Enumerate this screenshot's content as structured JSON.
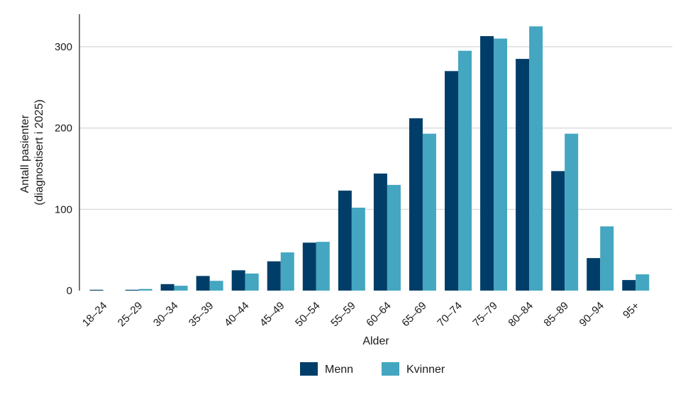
{
  "chart_data": {
    "type": "bar",
    "xlabel": "Alder",
    "ylabel_lines": [
      "Antall pasienter",
      "(diagnostisert i 2025)"
    ],
    "categories": [
      "18–24",
      "25–29",
      "30–34",
      "35–39",
      "40–44",
      "45–49",
      "50–54",
      "55–59",
      "60–64",
      "65–69",
      "70–74",
      "75–79",
      "80–84",
      "85–89",
      "90–94",
      "95+"
    ],
    "series": [
      {
        "name": "Menn",
        "color": "#003e69",
        "values": [
          1,
          1,
          8,
          18,
          25,
          36,
          59,
          123,
          144,
          212,
          270,
          313,
          285,
          147,
          40,
          13
        ]
      },
      {
        "name": "Kvinner",
        "color": "#44a6c0",
        "values": [
          0,
          2,
          6,
          12,
          21,
          47,
          60,
          102,
          130,
          193,
          295,
          310,
          325,
          193,
          79,
          20
        ]
      }
    ],
    "ylim": [
      0,
      340
    ],
    "yticks": [
      0,
      100,
      200,
      300
    ],
    "grid": true,
    "legend_position": "bottom-center"
  }
}
